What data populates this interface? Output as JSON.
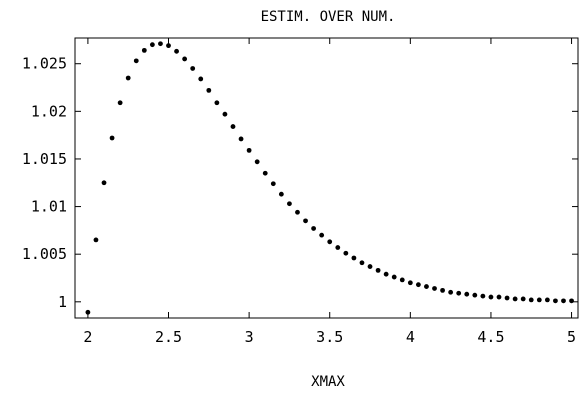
{
  "chart_data": {
    "type": "scatter",
    "title": "ESTIM. OVER NUM.",
    "xlabel": "XMAX",
    "ylabel": "",
    "xlim": [
      1.92,
      5.04
    ],
    "ylim": [
      0.9983,
      1.0277
    ],
    "grid": false,
    "legend": "none",
    "x_ticks": [
      {
        "value": 2,
        "label": "2"
      },
      {
        "value": 2.5,
        "label": "2.5"
      },
      {
        "value": 3,
        "label": "3"
      },
      {
        "value": 3.5,
        "label": "3.5"
      },
      {
        "value": 4,
        "label": "4"
      },
      {
        "value": 4.5,
        "label": "4.5"
      },
      {
        "value": 5,
        "label": "5"
      }
    ],
    "y_ticks": [
      {
        "value": 1,
        "label": "1"
      },
      {
        "value": 1.005,
        "label": "1.005"
      },
      {
        "value": 1.01,
        "label": "1.01"
      },
      {
        "value": 1.015,
        "label": "1.015"
      },
      {
        "value": 1.02,
        "label": "1.02"
      },
      {
        "value": 1.025,
        "label": "1.025"
      }
    ],
    "series": [
      {
        "color": "#000000",
        "x": [
          2.0,
          2.05,
          2.1,
          2.15,
          2.2,
          2.25,
          2.3,
          2.35,
          2.4,
          2.45,
          2.5,
          2.55,
          2.6,
          2.65,
          2.7,
          2.75,
          2.8,
          2.85,
          2.9,
          2.95,
          3.0,
          3.05,
          3.1,
          3.15,
          3.2,
          3.25,
          3.3,
          3.35,
          3.4,
          3.45,
          3.5,
          3.55,
          3.6,
          3.65,
          3.7,
          3.75,
          3.8,
          3.85,
          3.9,
          3.95,
          4.0,
          4.05,
          4.1,
          4.15,
          4.2,
          4.25,
          4.3,
          4.35,
          4.4,
          4.45,
          4.5,
          4.55,
          4.6,
          4.65,
          4.7,
          4.75,
          4.8,
          4.85,
          4.9,
          4.95,
          5.0
        ],
        "y": [
          0.9989,
          1.0065,
          1.0125,
          1.0172,
          1.0209,
          1.0235,
          1.0253,
          1.0264,
          1.027,
          1.0271,
          1.0269,
          1.0263,
          1.0255,
          1.0245,
          1.0234,
          1.0222,
          1.0209,
          1.0197,
          1.0184,
          1.0171,
          1.0159,
          1.0147,
          1.0135,
          1.0124,
          1.0113,
          1.0103,
          1.0094,
          1.0085,
          1.0077,
          1.007,
          1.0063,
          1.0057,
          1.0051,
          1.0046,
          1.0041,
          1.0037,
          1.0033,
          1.0029,
          1.0026,
          1.0023,
          1.002,
          1.0018,
          1.0016,
          1.0014,
          1.0012,
          1.001,
          1.0009,
          1.0008,
          1.0007,
          1.0006,
          1.0005,
          1.0005,
          1.0004,
          1.0003,
          1.0003,
          1.0002,
          1.0002,
          1.0002,
          1.0001,
          1.0001,
          1.0001
        ]
      }
    ]
  }
}
